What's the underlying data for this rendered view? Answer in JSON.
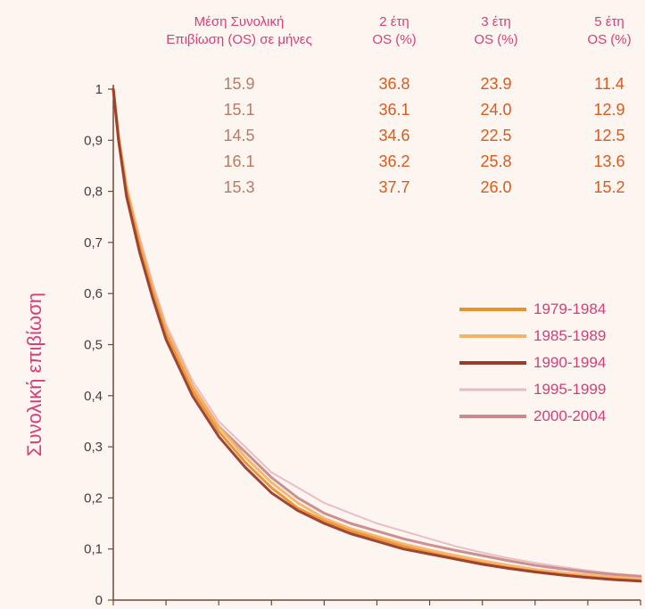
{
  "chart_data": {
    "type": "line",
    "ylabel": "Συνολική επιβίωση",
    "xlim": [
      0,
      10
    ],
    "ylim": [
      0,
      1
    ],
    "x_ticks": [
      "0",
      "1",
      "2",
      "3",
      "4",
      "5",
      "6",
      "7",
      "8",
      "9",
      "10"
    ],
    "y_ticks": [
      "0",
      "0,1",
      "0,2",
      "0,3",
      "0,4",
      "0,5",
      "0,6",
      "0,7",
      "0,8",
      "0,9",
      "1"
    ],
    "grid": false,
    "legend_position": "right-middle",
    "x": [
      0,
      0.1,
      0.25,
      0.5,
      0.75,
      1,
      1.5,
      2,
      2.5,
      3,
      3.5,
      4,
      4.5,
      5,
      5.5,
      6,
      6.5,
      7,
      7.5,
      8,
      8.5,
      9,
      9.5,
      10
    ],
    "series": [
      {
        "name": "1979-1984",
        "color": "#e8922a",
        "width": 3,
        "values": [
          1,
          0.9,
          0.8,
          0.69,
          0.6,
          0.52,
          0.41,
          0.33,
          0.27,
          0.22,
          0.18,
          0.155,
          0.135,
          0.12,
          0.105,
          0.093,
          0.082,
          0.072,
          0.063,
          0.056,
          0.05,
          0.045,
          0.041,
          0.038
        ]
      },
      {
        "name": "1985-1989",
        "color": "#f4b36a",
        "width": 3,
        "values": [
          1,
          0.91,
          0.81,
          0.7,
          0.61,
          0.53,
          0.42,
          0.34,
          0.28,
          0.23,
          0.19,
          0.16,
          0.14,
          0.125,
          0.11,
          0.098,
          0.087,
          0.077,
          0.068,
          0.06,
          0.054,
          0.049,
          0.045,
          0.042
        ]
      },
      {
        "name": "1990-1994",
        "color": "#9b3b2c",
        "width": 3,
        "values": [
          1,
          0.9,
          0.79,
          0.68,
          0.59,
          0.51,
          0.4,
          0.32,
          0.26,
          0.21,
          0.175,
          0.15,
          0.13,
          0.115,
          0.1,
          0.09,
          0.08,
          0.07,
          0.062,
          0.055,
          0.049,
          0.044,
          0.04,
          0.037
        ]
      },
      {
        "name": "1995-1999",
        "color": "#e6bcc4",
        "width": 2,
        "values": [
          1,
          0.91,
          0.81,
          0.71,
          0.62,
          0.54,
          0.43,
          0.35,
          0.3,
          0.25,
          0.22,
          0.19,
          0.17,
          0.15,
          0.135,
          0.12,
          0.105,
          0.093,
          0.082,
          0.073,
          0.065,
          0.058,
          0.052,
          0.048
        ]
      },
      {
        "name": "2000-2004",
        "color": "#c98a8c",
        "width": 3,
        "values": [
          1,
          0.91,
          0.8,
          0.7,
          0.61,
          0.53,
          0.42,
          0.34,
          0.29,
          0.24,
          0.2,
          0.17,
          0.15,
          0.135,
          0.12,
          0.108,
          0.097,
          0.087,
          0.077,
          0.068,
          0.061,
          0.055,
          0.05,
          0.046
        ]
      }
    ],
    "table": {
      "headers": [
        [
          "Μέση Συνολική",
          "Επιβίωση (OS) σε μήνες"
        ],
        [
          "2 έτη",
          "OS (%)"
        ],
        [
          "3 έτη",
          "OS (%)"
        ],
        [
          "5 έτη",
          "OS (%)"
        ]
      ],
      "rows": [
        [
          "15.9",
          "36.8",
          "23.9",
          "11.4"
        ],
        [
          "15.1",
          "36.1",
          "24.0",
          "12.9"
        ],
        [
          "14.5",
          "34.6",
          "22.5",
          "12.5"
        ],
        [
          "16.1",
          "36.2",
          "25.8",
          "13.6"
        ],
        [
          "15.3",
          "37.7",
          "26.0",
          "15.2"
        ]
      ]
    }
  }
}
